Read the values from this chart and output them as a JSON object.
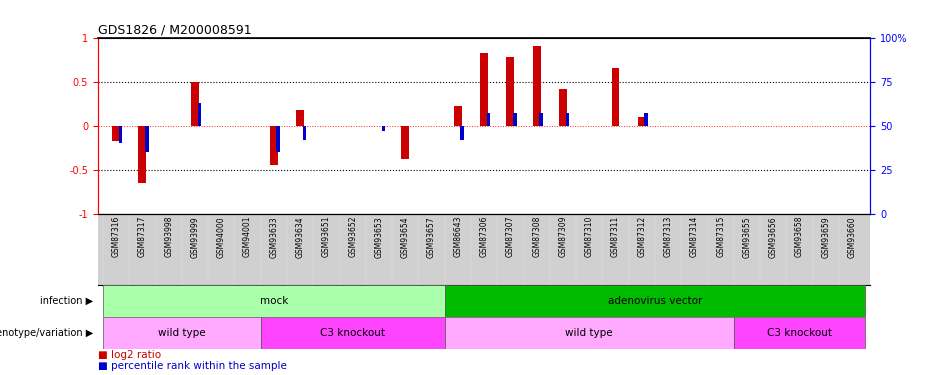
{
  "title": "GDS1826 / M200008591",
  "samples": [
    "GSM87316",
    "GSM87317",
    "GSM93998",
    "GSM93999",
    "GSM94000",
    "GSM94001",
    "GSM93633",
    "GSM93634",
    "GSM93651",
    "GSM93652",
    "GSM93653",
    "GSM93654",
    "GSM93657",
    "GSM86643",
    "GSM87306",
    "GSM87307",
    "GSM87308",
    "GSM87309",
    "GSM87310",
    "GSM87311",
    "GSM87312",
    "GSM87313",
    "GSM87314",
    "GSM87315",
    "GSM93655",
    "GSM93656",
    "GSM93658",
    "GSM93659",
    "GSM93660"
  ],
  "log2_ratio": [
    -0.18,
    -0.65,
    0.0,
    0.5,
    0.0,
    0.0,
    -0.45,
    0.18,
    0.0,
    0.0,
    0.0,
    -0.38,
    0.0,
    0.22,
    0.82,
    0.78,
    0.9,
    0.42,
    0.0,
    0.65,
    0.1,
    0.0,
    0.0,
    0.0,
    0.0,
    0.0,
    0.0,
    0.0,
    0.0
  ],
  "percentile": [
    40,
    35,
    0,
    63,
    0,
    0,
    35,
    42,
    0,
    0,
    47,
    0,
    0,
    42,
    57,
    57,
    57,
    57,
    0,
    50,
    57,
    0,
    0,
    0,
    0,
    0,
    0,
    0,
    0
  ],
  "infection_groups": [
    {
      "label": "mock",
      "start": 0,
      "end": 13,
      "color": "#AAFFAA"
    },
    {
      "label": "adenovirus vector",
      "start": 13,
      "end": 29,
      "color": "#00BB00"
    }
  ],
  "genotype_groups": [
    {
      "label": "wild type",
      "start": 0,
      "end": 6,
      "color": "#FFAAFF"
    },
    {
      "label": "C3 knockout",
      "start": 6,
      "end": 13,
      "color": "#FF44FF"
    },
    {
      "label": "wild type",
      "start": 13,
      "end": 24,
      "color": "#FFAAFF"
    },
    {
      "label": "C3 knockout",
      "start": 24,
      "end": 29,
      "color": "#FF44FF"
    }
  ],
  "bar_width": 0.3,
  "red_color": "#CC0000",
  "blue_color": "#0000CC",
  "bg_color": "#FFFFFF",
  "label_bg": "#D0D0D0",
  "ylim_left": [
    -1,
    1
  ],
  "ylim_right": [
    0,
    100
  ],
  "yticks_left": [
    -1,
    -0.5,
    0,
    0.5,
    1
  ],
  "yticks_right": [
    0,
    25,
    50,
    75,
    100
  ]
}
